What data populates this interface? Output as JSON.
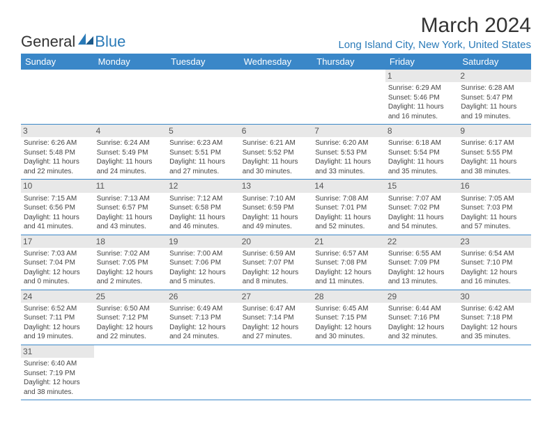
{
  "brand": {
    "general": "General",
    "blue": "Blue"
  },
  "title": "March 2024",
  "location": "Long Island City, New York, United States",
  "colors": {
    "header_bg": "#3a87c8",
    "accent": "#2a7ab8",
    "day_bg": "#e8e8e8",
    "text": "#444444",
    "background": "#ffffff"
  },
  "typography": {
    "title_fontsize": 30,
    "location_fontsize": 15,
    "cell_fontsize": 10,
    "daynum_fontsize": 12
  },
  "day_headers": [
    "Sunday",
    "Monday",
    "Tuesday",
    "Wednesday",
    "Thursday",
    "Friday",
    "Saturday"
  ],
  "weeks": [
    [
      null,
      null,
      null,
      null,
      null,
      {
        "n": "1",
        "sunrise": "Sunrise: 6:29 AM",
        "sunset": "Sunset: 5:46 PM",
        "d1": "Daylight: 11 hours",
        "d2": "and 16 minutes."
      },
      {
        "n": "2",
        "sunrise": "Sunrise: 6:28 AM",
        "sunset": "Sunset: 5:47 PM",
        "d1": "Daylight: 11 hours",
        "d2": "and 19 minutes."
      }
    ],
    [
      {
        "n": "3",
        "sunrise": "Sunrise: 6:26 AM",
        "sunset": "Sunset: 5:48 PM",
        "d1": "Daylight: 11 hours",
        "d2": "and 22 minutes."
      },
      {
        "n": "4",
        "sunrise": "Sunrise: 6:24 AM",
        "sunset": "Sunset: 5:49 PM",
        "d1": "Daylight: 11 hours",
        "d2": "and 24 minutes."
      },
      {
        "n": "5",
        "sunrise": "Sunrise: 6:23 AM",
        "sunset": "Sunset: 5:51 PM",
        "d1": "Daylight: 11 hours",
        "d2": "and 27 minutes."
      },
      {
        "n": "6",
        "sunrise": "Sunrise: 6:21 AM",
        "sunset": "Sunset: 5:52 PM",
        "d1": "Daylight: 11 hours",
        "d2": "and 30 minutes."
      },
      {
        "n": "7",
        "sunrise": "Sunrise: 6:20 AM",
        "sunset": "Sunset: 5:53 PM",
        "d1": "Daylight: 11 hours",
        "d2": "and 33 minutes."
      },
      {
        "n": "8",
        "sunrise": "Sunrise: 6:18 AM",
        "sunset": "Sunset: 5:54 PM",
        "d1": "Daylight: 11 hours",
        "d2": "and 35 minutes."
      },
      {
        "n": "9",
        "sunrise": "Sunrise: 6:17 AM",
        "sunset": "Sunset: 5:55 PM",
        "d1": "Daylight: 11 hours",
        "d2": "and 38 minutes."
      }
    ],
    [
      {
        "n": "10",
        "sunrise": "Sunrise: 7:15 AM",
        "sunset": "Sunset: 6:56 PM",
        "d1": "Daylight: 11 hours",
        "d2": "and 41 minutes."
      },
      {
        "n": "11",
        "sunrise": "Sunrise: 7:13 AM",
        "sunset": "Sunset: 6:57 PM",
        "d1": "Daylight: 11 hours",
        "d2": "and 43 minutes."
      },
      {
        "n": "12",
        "sunrise": "Sunrise: 7:12 AM",
        "sunset": "Sunset: 6:58 PM",
        "d1": "Daylight: 11 hours",
        "d2": "and 46 minutes."
      },
      {
        "n": "13",
        "sunrise": "Sunrise: 7:10 AM",
        "sunset": "Sunset: 6:59 PM",
        "d1": "Daylight: 11 hours",
        "d2": "and 49 minutes."
      },
      {
        "n": "14",
        "sunrise": "Sunrise: 7:08 AM",
        "sunset": "Sunset: 7:01 PM",
        "d1": "Daylight: 11 hours",
        "d2": "and 52 minutes."
      },
      {
        "n": "15",
        "sunrise": "Sunrise: 7:07 AM",
        "sunset": "Sunset: 7:02 PM",
        "d1": "Daylight: 11 hours",
        "d2": "and 54 minutes."
      },
      {
        "n": "16",
        "sunrise": "Sunrise: 7:05 AM",
        "sunset": "Sunset: 7:03 PM",
        "d1": "Daylight: 11 hours",
        "d2": "and 57 minutes."
      }
    ],
    [
      {
        "n": "17",
        "sunrise": "Sunrise: 7:03 AM",
        "sunset": "Sunset: 7:04 PM",
        "d1": "Daylight: 12 hours",
        "d2": "and 0 minutes."
      },
      {
        "n": "18",
        "sunrise": "Sunrise: 7:02 AM",
        "sunset": "Sunset: 7:05 PM",
        "d1": "Daylight: 12 hours",
        "d2": "and 2 minutes."
      },
      {
        "n": "19",
        "sunrise": "Sunrise: 7:00 AM",
        "sunset": "Sunset: 7:06 PM",
        "d1": "Daylight: 12 hours",
        "d2": "and 5 minutes."
      },
      {
        "n": "20",
        "sunrise": "Sunrise: 6:59 AM",
        "sunset": "Sunset: 7:07 PM",
        "d1": "Daylight: 12 hours",
        "d2": "and 8 minutes."
      },
      {
        "n": "21",
        "sunrise": "Sunrise: 6:57 AM",
        "sunset": "Sunset: 7:08 PM",
        "d1": "Daylight: 12 hours",
        "d2": "and 11 minutes."
      },
      {
        "n": "22",
        "sunrise": "Sunrise: 6:55 AM",
        "sunset": "Sunset: 7:09 PM",
        "d1": "Daylight: 12 hours",
        "d2": "and 13 minutes."
      },
      {
        "n": "23",
        "sunrise": "Sunrise: 6:54 AM",
        "sunset": "Sunset: 7:10 PM",
        "d1": "Daylight: 12 hours",
        "d2": "and 16 minutes."
      }
    ],
    [
      {
        "n": "24",
        "sunrise": "Sunrise: 6:52 AM",
        "sunset": "Sunset: 7:11 PM",
        "d1": "Daylight: 12 hours",
        "d2": "and 19 minutes."
      },
      {
        "n": "25",
        "sunrise": "Sunrise: 6:50 AM",
        "sunset": "Sunset: 7:12 PM",
        "d1": "Daylight: 12 hours",
        "d2": "and 22 minutes."
      },
      {
        "n": "26",
        "sunrise": "Sunrise: 6:49 AM",
        "sunset": "Sunset: 7:13 PM",
        "d1": "Daylight: 12 hours",
        "d2": "and 24 minutes."
      },
      {
        "n": "27",
        "sunrise": "Sunrise: 6:47 AM",
        "sunset": "Sunset: 7:14 PM",
        "d1": "Daylight: 12 hours",
        "d2": "and 27 minutes."
      },
      {
        "n": "28",
        "sunrise": "Sunrise: 6:45 AM",
        "sunset": "Sunset: 7:15 PM",
        "d1": "Daylight: 12 hours",
        "d2": "and 30 minutes."
      },
      {
        "n": "29",
        "sunrise": "Sunrise: 6:44 AM",
        "sunset": "Sunset: 7:16 PM",
        "d1": "Daylight: 12 hours",
        "d2": "and 32 minutes."
      },
      {
        "n": "30",
        "sunrise": "Sunrise: 6:42 AM",
        "sunset": "Sunset: 7:18 PM",
        "d1": "Daylight: 12 hours",
        "d2": "and 35 minutes."
      }
    ],
    [
      {
        "n": "31",
        "sunrise": "Sunrise: 6:40 AM",
        "sunset": "Sunset: 7:19 PM",
        "d1": "Daylight: 12 hours",
        "d2": "and 38 minutes."
      },
      null,
      null,
      null,
      null,
      null,
      null
    ]
  ]
}
